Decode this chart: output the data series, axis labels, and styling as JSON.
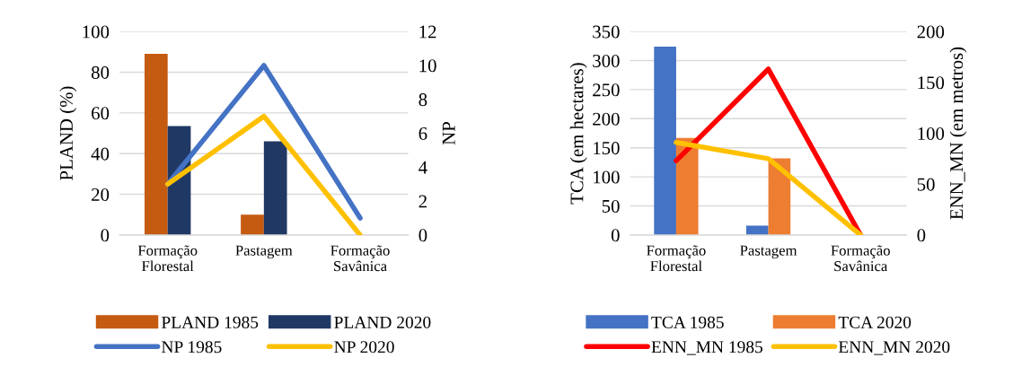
{
  "chart_data": [
    {
      "type": "bar",
      "categories": [
        "Formação\nFlorestal",
        "Pastagem",
        "Formação\nSavânica"
      ],
      "ylabel": "PLAND (%)",
      "y2label": "NP",
      "ylim": [
        0,
        100
      ],
      "yticks": [
        0,
        20,
        40,
        60,
        80,
        100
      ],
      "y2lim": [
        0,
        12
      ],
      "y2ticks": [
        0,
        2,
        4,
        6,
        8,
        10,
        12
      ],
      "grid": "y",
      "legend": "bottom",
      "series": [
        {
          "name": "PLAND 1985",
          "color": "#c55a11",
          "values": [
            89,
            10,
            0
          ]
        },
        {
          "name": "PLAND 2020",
          "color": "#203864",
          "values": [
            53.5,
            46,
            0
          ]
        },
        {
          "name": "NP 1985",
          "type": "line",
          "axis": "y2",
          "color": "#4472c4",
          "values": [
            3,
            10,
            1
          ]
        },
        {
          "name": "NP 2020",
          "type": "line",
          "axis": "y2",
          "color": "#ffc000",
          "values": [
            3,
            7,
            0
          ]
        }
      ]
    },
    {
      "type": "bar",
      "categories": [
        "Formação\nFlorestal",
        "Pastagem",
        "Formação\nSavânica"
      ],
      "ylabel": "TCA (em hectares)",
      "y2label": "ENN_MN (em metros)",
      "ylim": [
        0,
        350
      ],
      "yticks": [
        0,
        50,
        100,
        150,
        200,
        250,
        300,
        350
      ],
      "y2lim": [
        0,
        200
      ],
      "y2ticks": [
        0,
        50,
        100,
        150,
        200
      ],
      "grid": "y",
      "legend": "bottom",
      "series": [
        {
          "name": "TCA 1985",
          "color": "#4472c4",
          "values": [
            324,
            16,
            0
          ]
        },
        {
          "name": "TCA 2020",
          "color": "#ed7d31",
          "values": [
            167,
            132,
            0
          ]
        },
        {
          "name": "ENN_MN 1985",
          "type": "line",
          "axis": "y2",
          "color": "#ff0000",
          "values": [
            73,
            163,
            0
          ]
        },
        {
          "name": "ENN_MN 2020",
          "type": "line",
          "axis": "y2",
          "color": "#ffc000",
          "values": [
            91,
            75,
            0
          ]
        }
      ]
    }
  ]
}
